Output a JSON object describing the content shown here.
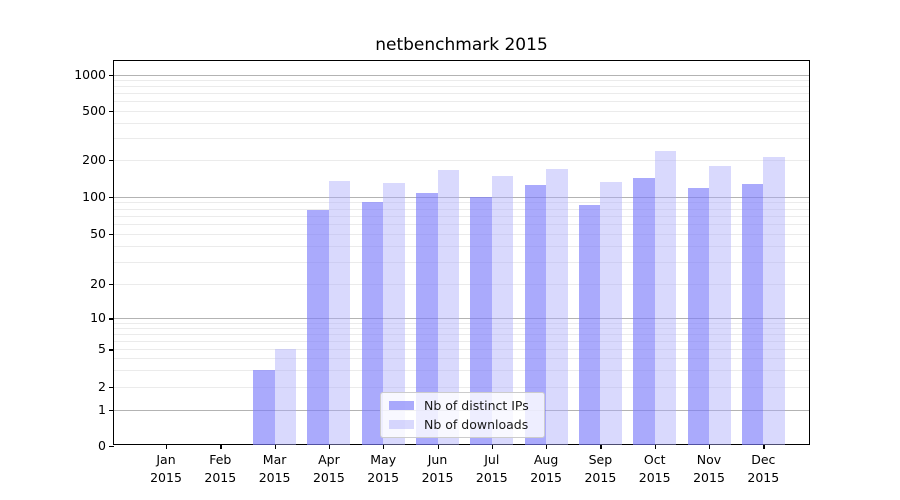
{
  "chart_data": {
    "type": "bar",
    "title": "netbenchmark 2015",
    "categories": [
      "Jan\n2015",
      "Feb\n2015",
      "Mar\n2015",
      "Apr\n2015",
      "May\n2015",
      "Jun\n2015",
      "Jul\n2015",
      "Aug\n2015",
      "Sep\n2015",
      "Oct\n2015",
      "Nov\n2015",
      "Dec\n2015"
    ],
    "series": [
      {
        "name": "Nb of distinct IPs",
        "color": "#7d7dfa",
        "alpha": 0.65,
        "values": [
          0,
          0,
          3,
          78,
          90,
          107,
          100,
          125,
          85,
          142,
          118,
          128
        ]
      },
      {
        "name": "Nb of downloads",
        "color": "#aaaafa",
        "alpha": 0.45,
        "values": [
          0,
          0,
          5,
          135,
          130,
          167,
          147,
          170,
          133,
          235,
          177,
          210
        ]
      }
    ],
    "xlabel": "",
    "ylabel": "",
    "y_scale": "symlog",
    "y_ticks": [
      0,
      1,
      2,
      5,
      10,
      20,
      50,
      100,
      200,
      500,
      1000
    ],
    "ylim": [
      0,
      1400
    ],
    "grid": "both",
    "grid_major_color": "#b3b3b3",
    "grid_minor_color": "#ebebeb",
    "legend_position": "lower-center"
  }
}
